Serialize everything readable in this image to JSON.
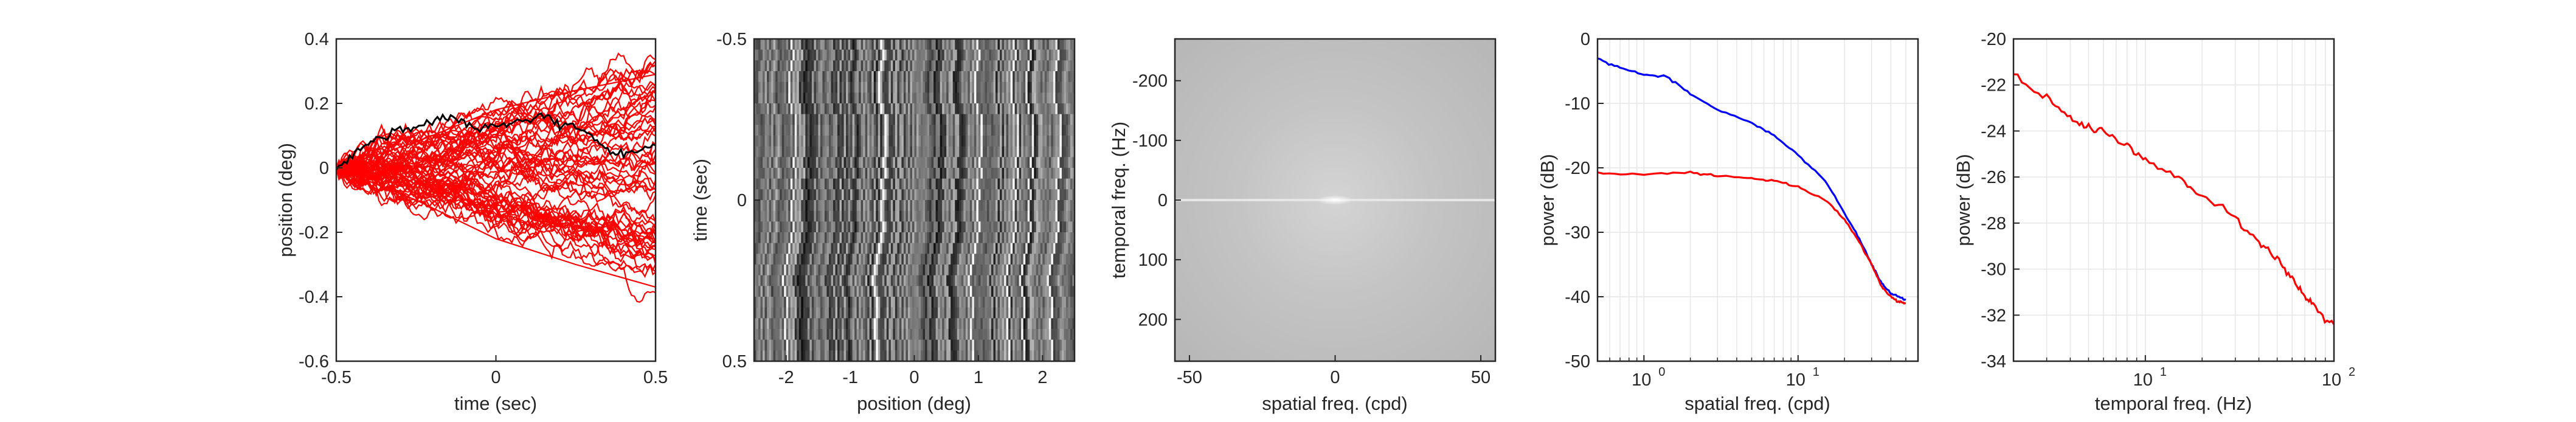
{
  "chart_data": [
    {
      "type": "line",
      "panel": "drift-trajectories",
      "xlabel": "time (sec)",
      "ylabel": "position (deg)",
      "xlim": [
        -0.5,
        0.5
      ],
      "ylim": [
        -0.6,
        0.4
      ],
      "xticks": [
        -0.5,
        0,
        0.5
      ],
      "yticks": [
        -0.6,
        -0.4,
        -0.2,
        0,
        0.2,
        0.4
      ],
      "xtick_labels": [
        "-0.5",
        "0",
        "0.5"
      ],
      "ytick_labels": [
        "-0.6",
        "-0.4",
        "-0.2",
        "0",
        "0.2",
        "0.4"
      ],
      "grid": false,
      "colors": {
        "traces": "#ff0000",
        "highlight": "#000000"
      },
      "series": [
        {
          "role": "highlight",
          "color": "#000000",
          "x": [
            -0.5,
            -0.45,
            -0.4,
            -0.35,
            -0.3,
            -0.25,
            -0.2,
            -0.15,
            -0.1,
            -0.05,
            0,
            0.05,
            0.1,
            0.15,
            0.2,
            0.25,
            0.3,
            0.35,
            0.4,
            0.45,
            0.5
          ],
          "y": [
            0.0,
            0.04,
            0.08,
            0.1,
            0.12,
            0.13,
            0.14,
            0.16,
            0.14,
            0.12,
            0.13,
            0.14,
            0.15,
            0.16,
            0.14,
            0.13,
            0.1,
            0.05,
            0.04,
            0.06,
            0.07
          ]
        },
        {
          "role": "trace",
          "color": "#ff0000",
          "x": [
            -0.5,
            -0.25,
            0,
            0.25,
            0.5
          ],
          "y": [
            0.0,
            0.08,
            0.18,
            0.24,
            0.29
          ]
        },
        {
          "role": "trace",
          "color": "#ff0000",
          "x": [
            -0.5,
            -0.25,
            0,
            0.25,
            0.5
          ],
          "y": [
            0.0,
            -0.1,
            -0.22,
            -0.3,
            -0.37
          ]
        }
      ]
    },
    {
      "type": "heatmap",
      "panel": "movie-xt",
      "xlabel": "position (deg)",
      "ylabel": "time (sec)",
      "xlim": [
        -2.5,
        2.5
      ],
      "ylim": [
        -0.5,
        0.5
      ],
      "y_reversed": true,
      "xticks": [
        -2,
        -1,
        0,
        1,
        2
      ],
      "yticks": [
        -0.5,
        0,
        0.5
      ],
      "xtick_labels": [
        "-2",
        "-1",
        "0",
        "1",
        "2"
      ],
      "ytick_labels": [
        "-0.5",
        "0",
        "0.5"
      ],
      "colormap": "gray"
    },
    {
      "type": "heatmap",
      "panel": "power-spectrum-2d",
      "xlabel": "spatial freq. (cpd)",
      "ylabel": "temporal freq. (Hz)",
      "xlim": [
        -55,
        55
      ],
      "ylim": [
        -270,
        270
      ],
      "y_reversed": true,
      "xticks": [
        -50,
        0,
        50
      ],
      "yticks": [
        -200,
        -100,
        0,
        100,
        200
      ],
      "xtick_labels": [
        "-50",
        "0",
        "50"
      ],
      "ytick_labels": [
        "-200",
        "-100",
        "0",
        "100",
        "200"
      ],
      "colormap": "gray"
    },
    {
      "type": "line",
      "panel": "spatial-spectrum",
      "xlabel": "spatial freq. (cpd)",
      "ylabel": "power (dB)",
      "xscale": "log",
      "xlim": [
        0.5,
        60
      ],
      "ylim": [
        -50,
        0
      ],
      "xticks": [
        1,
        10
      ],
      "yticks": [
        -50,
        -40,
        -30,
        -20,
        -10,
        0
      ],
      "ytick_labels": [
        "-50",
        "-40",
        "-30",
        "-20",
        "-10",
        "0"
      ],
      "xtick_labels": [
        {
          "base": "10",
          "exp": "0"
        },
        {
          "base": "10",
          "exp": "1"
        }
      ],
      "grid": true,
      "series": [
        {
          "color": "#0000ff",
          "x": [
            0.5,
            0.7,
            1.0,
            1.4,
            2.0,
            3.0,
            5.0,
            7.0,
            10,
            15,
            20,
            25,
            30,
            35,
            40,
            45,
            50
          ],
          "y": [
            -3,
            -4.5,
            -5.5,
            -5.8,
            -8.5,
            -11,
            -13,
            -15,
            -18,
            -22,
            -27,
            -31,
            -35,
            -38,
            -39.5,
            -40,
            -40.5
          ]
        },
        {
          "color": "#ff0000",
          "x": [
            0.5,
            1.0,
            2.0,
            3.0,
            5.0,
            7.0,
            10,
            15,
            20,
            25,
            30,
            35,
            40,
            45,
            50
          ],
          "y": [
            -20.8,
            -21,
            -20.7,
            -21.2,
            -21.6,
            -22,
            -23,
            -25,
            -28,
            -31.5,
            -35,
            -38.5,
            -40,
            -40.8,
            -41
          ]
        }
      ]
    },
    {
      "type": "line",
      "panel": "temporal-spectrum",
      "xlabel": "temporal freq. (Hz)",
      "ylabel": "power (dB)",
      "xscale": "log",
      "xlim": [
        2,
        100
      ],
      "ylim": [
        -34,
        -20
      ],
      "xticks": [
        10,
        100
      ],
      "yticks": [
        -34,
        -32,
        -30,
        -28,
        -26,
        -24,
        -22,
        -20
      ],
      "ytick_labels": [
        "-34",
        "-32",
        "-30",
        "-28",
        "-26",
        "-24",
        "-22",
        "-20"
      ],
      "xtick_labels": [
        {
          "base": "10",
          "exp": "1"
        },
        {
          "base": "10",
          "exp": "2"
        }
      ],
      "grid": true,
      "series": [
        {
          "color": "#ff0000",
          "x": [
            2,
            3,
            4,
            5,
            6,
            8,
            10,
            15,
            20,
            30,
            40,
            50,
            60,
            70,
            80,
            100
          ],
          "y": [
            -21.5,
            -22.6,
            -23.4,
            -23.9,
            -24.0,
            -24.6,
            -25.3,
            -26.0,
            -26.8,
            -27.8,
            -28.8,
            -29.5,
            -30.4,
            -31.2,
            -31.7,
            -32.4
          ]
        }
      ]
    }
  ]
}
